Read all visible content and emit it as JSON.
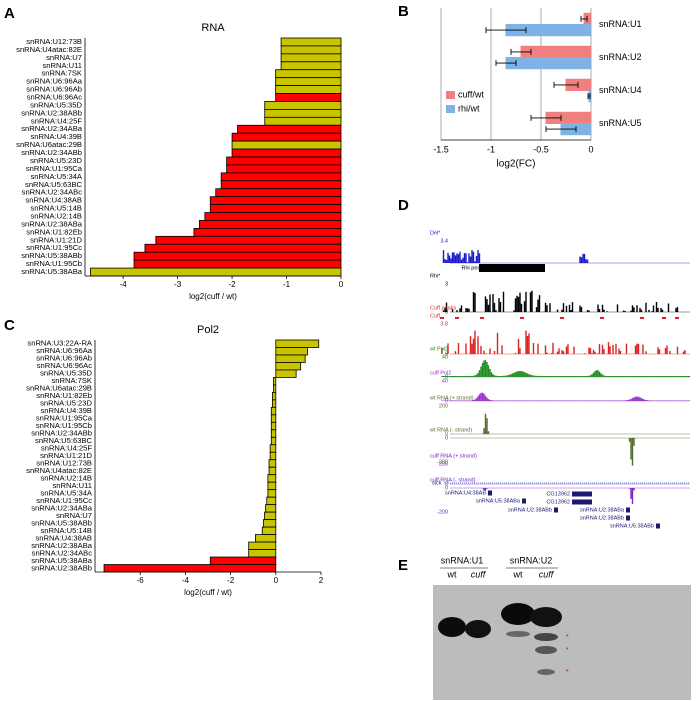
{
  "chart_data": [
    {
      "type": "hbar",
      "title": "RNA",
      "xlabel": "log2(cuff / wt)",
      "categories": [
        "snRNA:U12:73B",
        "snRNA:U4atac:82E",
        "snRNA:U7",
        "snRNA:U11",
        "snRNA:7SK",
        "snRNA:U6:96Aa",
        "snRNA:U6:96Ab",
        "snRNA:U6:96Ac",
        "snRNA:U5:35D",
        "snRNA:U2:38ABb",
        "snRNA:U4:25F",
        "snRNA:U2:34ABa",
        "snRNA:U4:39B",
        "snRNA:U6atac:29B",
        "snRNA:U2:34ABb",
        "snRNA:U5:23D",
        "snRNA:U1:95Ca",
        "snRNA:U5:34A",
        "snRNA:U5:63BC",
        "snRNA:U2:34ABc",
        "snRNA:U4:38AB",
        "snRNA:U5:14B",
        "snRNA:U2:14B",
        "snRNA:U2:38ABa",
        "snRNA:U1:82Eb",
        "snRNA:U1:21D",
        "snRNA:U1:95Cc",
        "snRNA:U5:38ABb",
        "snRNA:U1:95Cb",
        "snRNA:U5:38ABa"
      ],
      "values": [
        -1.1,
        -1.1,
        -1.1,
        -1.1,
        -1.2,
        -1.2,
        -1.2,
        -1.2,
        -1.4,
        -1.4,
        -1.4,
        -1.9,
        -2.0,
        -2.0,
        -2.0,
        -2.1,
        -2.1,
        -2.2,
        -2.2,
        -2.3,
        -2.4,
        -2.4,
        -2.5,
        -2.6,
        -2.7,
        -3.4,
        -3.6,
        -3.8,
        -3.8,
        -4.6
      ],
      "colors": [
        "#c8c400",
        "#c8c400",
        "#c8c400",
        "#c8c400",
        "#c8c400",
        "#c8c400",
        "#c8c400",
        "#ff0000",
        "#c8c400",
        "#c8c400",
        "#c8c400",
        "#ff0000",
        "#ff0000",
        "#c8c400",
        "#ff0000",
        "#ff0000",
        "#ff0000",
        "#ff0000",
        "#ff0000",
        "#ff0000",
        "#ff0000",
        "#ff0000",
        "#ff0000",
        "#ff0000",
        "#ff0000",
        "#ff0000",
        "#ff0000",
        "#ff0000",
        "#ff0000",
        "#c8c400"
      ],
      "xlim": [
        -4.7,
        0
      ],
      "xticks": [
        -4,
        -3,
        -2,
        -1,
        0
      ]
    },
    {
      "type": "grouped-hbar",
      "xlabel": "log2(FC)",
      "categories": [
        "snRNA:U1",
        "snRNA:U2",
        "snRNA:U4",
        "snRNA:U5"
      ],
      "series": [
        {
          "name": "cuff/wt",
          "color": "#f08080",
          "values": [
            -0.07,
            -0.7,
            -0.25,
            -0.45
          ],
          "errors": [
            0.03,
            0.1,
            0.12,
            0.15
          ]
        },
        {
          "name": "rhi/wt",
          "color": "#7fb2e5",
          "values": [
            -0.85,
            -0.85,
            -0.02,
            -0.3
          ],
          "errors": [
            0.2,
            0.1,
            0.01,
            0.15
          ]
        }
      ],
      "xlim": [
        -1.5,
        0
      ],
      "xticks": [
        -1.5,
        -1,
        -0.5,
        0
      ],
      "grid": true,
      "legend": "lower-left"
    },
    {
      "type": "hbar",
      "title": "Pol2",
      "xlabel": "log2(cuff / wt)",
      "categories": [
        "snRNA:U3:22A-RA",
        "snRNA:U6:96Aa",
        "snRNA:U6:96Ab",
        "snRNA:U6:96Ac",
        "snRNA:U5:35D",
        "snRNA:7SK",
        "snRNA:U6atac:29B",
        "snRNA:U1:82Eb",
        "snRNA:U5:23D",
        "snRNA:U4:39B",
        "snRNA:U1:95Ca",
        "snRNA:U1:95Cb",
        "snRNA:U2:34ABb",
        "snRNA:U5:63BC",
        "snRNA:U4:25F",
        "snRNA:U1:21D",
        "snRNA:U12:73B",
        "snRNA:U4atac:82E",
        "snRNA:U2:14B",
        "snRNA:U11",
        "snRNA:U5:34A",
        "snRNA:U1:95Cc",
        "snRNA:U2:34ABa",
        "snRNA:U7",
        "snRNA:U5:38ABb",
        "snRNA:U5:14B",
        "snRNA:U4:38AB",
        "snRNA:U2:38ABa",
        "snRNA:U2:34ABc",
        "snRNA:U5:38ABa",
        "snRNA:U2:38ABb"
      ],
      "values": [
        1.9,
        1.4,
        1.3,
        1.1,
        0.9,
        -0.1,
        -0.1,
        -0.15,
        -0.15,
        -0.2,
        -0.2,
        -0.2,
        -0.2,
        -0.2,
        -0.25,
        -0.25,
        -0.3,
        -0.3,
        -0.35,
        -0.35,
        -0.35,
        -0.4,
        -0.45,
        -0.5,
        -0.55,
        -0.6,
        -0.9,
        -1.2,
        -1.2,
        -2.9,
        -7.6
      ],
      "colors": [
        "#c8c400",
        "#c8c400",
        "#c8c400",
        "#c8c400",
        "#c8c400",
        "#c8c400",
        "#c8c400",
        "#c8c400",
        "#c8c400",
        "#c8c400",
        "#c8c400",
        "#c8c400",
        "#c8c400",
        "#c8c400",
        "#c8c400",
        "#c8c400",
        "#c8c400",
        "#c8c400",
        "#c8c400",
        "#c8c400",
        "#c8c400",
        "#c8c400",
        "#c8c400",
        "#c8c400",
        "#c8c400",
        "#c8c400",
        "#c8c400",
        "#c8c400",
        "#c8c400",
        "#ff0000",
        "#ff0000"
      ],
      "xlim": [
        -8,
        2
      ],
      "xticks": [
        -6,
        -4,
        -2,
        0,
        2
      ]
    }
  ],
  "panel_labels": [
    "A",
    "B",
    "C",
    "D",
    "E"
  ],
  "browser": {
    "tracks": [
      {
        "label": "Del*",
        "color": "#1a1acc",
        "scale": [
          "3.4"
        ]
      },
      {
        "label": "Rhi peaks",
        "color": "#000000",
        "scale": []
      },
      {
        "label": "Rhi*",
        "color": "#000000",
        "scale": [
          "3",
          "0"
        ]
      },
      {
        "label": "Cuff peaks",
        "color": "#dd2222",
        "scale": []
      },
      {
        "label": "Cuff",
        "color": "#dd2222",
        "scale": [
          "3.8",
          "0"
        ]
      },
      {
        "label": "wt Pol2",
        "color": "#228b22",
        "scale": [
          "40",
          "0"
        ]
      },
      {
        "label": "cuff Pol2",
        "color": "#9932cc",
        "scale": [
          "40",
          "0"
        ]
      },
      {
        "label": "wt RNA (+ strand)",
        "color": "#556b2f",
        "scale": [
          "200",
          "0"
        ]
      },
      {
        "label": "wt RNA (- strand)",
        "color": "#556b2f",
        "scale": [
          "0",
          "-200"
        ]
      },
      {
        "label": "cuff RNA (+ strand)",
        "color": "#7b22cc",
        "scale": [
          "200",
          "0"
        ]
      },
      {
        "label": "cuff RNA (- strand)",
        "color": "#7b22cc",
        "scale": [
          "0",
          "-200"
        ]
      }
    ],
    "gene_track": "sick",
    "genes": [
      "snRNA:U4:38AB",
      "snRNA:U5:38ABa",
      "snRNA:U2:38ABb",
      "CG13962",
      "CG13962",
      "snRNA:U2:38ABa",
      "snRNA:U2:38ABb",
      "snRNA:U5:38ABb"
    ]
  },
  "gel": {
    "groups": [
      "snRNA:U1",
      "snRNA:U2"
    ],
    "lanes": [
      "wt",
      "cuff",
      "wt",
      "cuff"
    ]
  }
}
